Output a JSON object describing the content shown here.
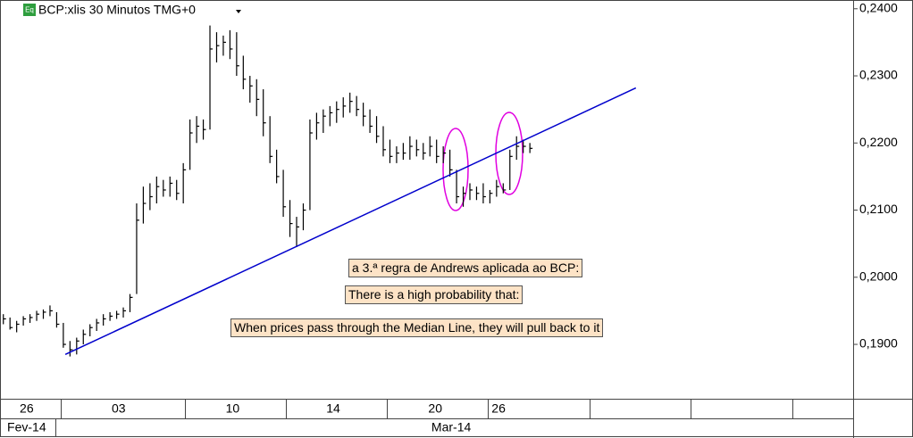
{
  "chart_data": {
    "type": "ohlc",
    "title": "BCP:xlis 30 Minutos TMG+0",
    "icon": "Eq",
    "color": "#000000",
    "high": [
      0.1945,
      0.194,
      0.1935,
      0.1942,
      0.1945,
      0.195,
      0.1952,
      0.1958,
      0.1948,
      0.1932,
      0.1905,
      0.191,
      0.1922,
      0.193,
      0.1938,
      0.1945,
      0.1948,
      0.195,
      0.1955,
      0.1975,
      0.211,
      0.2135,
      0.214,
      0.215,
      0.2145,
      0.215,
      0.2145,
      0.217,
      0.2235,
      0.224,
      0.2235,
      0.2375,
      0.2365,
      0.236,
      0.2368,
      0.2365,
      0.233,
      0.23,
      0.2295,
      0.228,
      0.224,
      0.219,
      0.216,
      0.2115,
      0.209,
      0.211,
      0.2235,
      0.2245,
      0.225,
      0.2255,
      0.2262,
      0.2268,
      0.2275,
      0.227,
      0.226,
      0.225,
      0.224,
      0.2225,
      0.2205,
      0.2195,
      0.22,
      0.221,
      0.2205,
      0.22,
      0.221,
      0.2205,
      0.2195,
      0.219,
      0.216,
      0.2135,
      0.214,
      0.2135,
      0.214,
      0.213,
      0.2145,
      0.214,
      0.219,
      0.221,
      0.2205,
      0.22
    ],
    "low": [
      0.193,
      0.1922,
      0.1918,
      0.1928,
      0.1932,
      0.1935,
      0.1938,
      0.1942,
      0.1925,
      0.1895,
      0.1882,
      0.1885,
      0.19,
      0.1912,
      0.192,
      0.1928,
      0.1935,
      0.1938,
      0.194,
      0.1948,
      0.1975,
      0.208,
      0.21,
      0.211,
      0.212,
      0.212,
      0.2115,
      0.211,
      0.216,
      0.22,
      0.2205,
      0.222,
      0.232,
      0.233,
      0.2325,
      0.23,
      0.228,
      0.226,
      0.224,
      0.221,
      0.217,
      0.214,
      0.209,
      0.206,
      0.2045,
      0.207,
      0.21,
      0.2205,
      0.2215,
      0.2225,
      0.223,
      0.2238,
      0.2245,
      0.224,
      0.2225,
      0.2215,
      0.22,
      0.218,
      0.217,
      0.217,
      0.2175,
      0.2175,
      0.218,
      0.2175,
      0.218,
      0.217,
      0.217,
      0.215,
      0.211,
      0.2105,
      0.2115,
      0.2115,
      0.211,
      0.211,
      0.212,
      0.2125,
      0.213,
      0.2175,
      0.2185,
      0.2185
    ],
    "close": [
      0.1938,
      0.1925,
      0.193,
      0.1938,
      0.194,
      0.1945,
      0.1948,
      0.195,
      0.193,
      0.19,
      0.1892,
      0.1905,
      0.1915,
      0.1925,
      0.1932,
      0.1938,
      0.1942,
      0.1945,
      0.195,
      0.197,
      0.2085,
      0.211,
      0.212,
      0.2135,
      0.213,
      0.214,
      0.2125,
      0.216,
      0.2215,
      0.2225,
      0.222,
      0.234,
      0.2345,
      0.235,
      0.234,
      0.2315,
      0.2295,
      0.2285,
      0.2265,
      0.223,
      0.218,
      0.215,
      0.2105,
      0.208,
      0.2075,
      0.21,
      0.2215,
      0.223,
      0.224,
      0.2245,
      0.225,
      0.2255,
      0.2262,
      0.225,
      0.224,
      0.2225,
      0.221,
      0.219,
      0.218,
      0.2185,
      0.2185,
      0.2195,
      0.219,
      0.2185,
      0.2195,
      0.218,
      0.2185,
      0.216,
      0.212,
      0.2125,
      0.213,
      0.2125,
      0.212,
      0.2125,
      0.2135,
      0.213,
      0.218,
      0.2195,
      0.2195,
      0.2192
    ],
    "xlim": [
      0,
      128
    ],
    "ylim": [
      0.1819,
      0.2413
    ],
    "yticks": [
      {
        "value": 0.19,
        "label": "0,1900"
      },
      {
        "value": 0.2,
        "label": "0,2000"
      },
      {
        "value": 0.21,
        "label": "0,2100"
      },
      {
        "value": 0.22,
        "label": "0,2200"
      },
      {
        "value": 0.23,
        "label": "0,2300"
      },
      {
        "value": 0.24,
        "label": "0,2400"
      }
    ],
    "xticks": [
      {
        "value": 4.0,
        "label": "26"
      },
      {
        "value": 17.8,
        "label": "03"
      },
      {
        "value": 34.9,
        "label": "10"
      },
      {
        "value": 50.0,
        "label": "14"
      },
      {
        "value": 65.3,
        "label": "20"
      },
      {
        "value": 74.8,
        "label": "26"
      }
    ],
    "month_ticks": [
      {
        "value": 4.0,
        "label": "Fev-14"
      },
      {
        "value": 67.7,
        "label": "Mar-14"
      }
    ],
    "lines": [
      {
        "x": [
          9.8,
          95.4
        ],
        "y": [
          0.1885,
          0.2282
        ],
        "color": "#0000cc"
      }
    ],
    "annotations": [
      "a 3.ª regra de Andrews aplicada ao BCP:",
      "There is a high probability that:",
      "When prices pass through the Median Line, they will pull back to it"
    ]
  }
}
